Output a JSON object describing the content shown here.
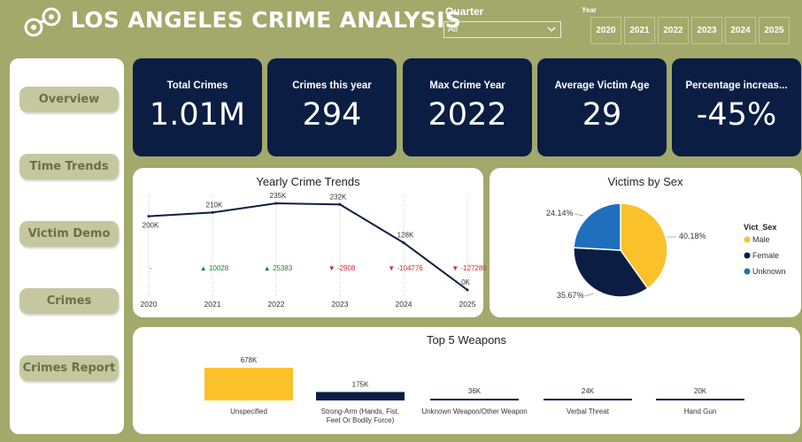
{
  "header": {
    "title": "LOS ANGELES CRIME ANALYSIS",
    "logo_icon": "handcuffs-icon"
  },
  "filters": {
    "quarter_label": "Quarter",
    "quarter_value": "All",
    "year_label": "Year",
    "years": [
      "2020",
      "2021",
      "2022",
      "2023",
      "2024",
      "2025"
    ]
  },
  "sidebar": {
    "items": [
      {
        "label": "Overview"
      },
      {
        "label": "Time Trends"
      },
      {
        "label": "Victim Demo"
      },
      {
        "label": "Crimes"
      },
      {
        "label": "Crimes Report"
      }
    ]
  },
  "kpis": [
    {
      "label": "Total Crimes",
      "value": "1.01M"
    },
    {
      "label": "Crimes this year",
      "value": "294"
    },
    {
      "label": "Max Crime Year",
      "value": "2022"
    },
    {
      "label": "Average Victim Age",
      "value": "29"
    },
    {
      "label": "Percentage increas...",
      "value": "-45%"
    }
  ],
  "colors": {
    "background": "#a3a96a",
    "navy": "#0b1d43",
    "yellow": "#fbc12a",
    "blue": "#1f6fbd",
    "up": "#1a8a34",
    "down": "#d62828"
  },
  "chart_data": [
    {
      "type": "line",
      "title": "Yearly Crime Trends",
      "x": [
        "2020",
        "2021",
        "2022",
        "2023",
        "2024",
        "2025"
      ],
      "values": [
        200000,
        210000,
        235000,
        232000,
        128000,
        0
      ],
      "data_labels": [
        "200K",
        "210K",
        "235K",
        "232K",
        "128K",
        "0K"
      ],
      "change_labels": [
        "-",
        "▲ 10028",
        "▲ 25383",
        "▼ -2908",
        "▼ -104776",
        "▼ -127280"
      ],
      "change_direction": [
        "none",
        "up",
        "up",
        "down",
        "down",
        "down"
      ],
      "grid": false
    },
    {
      "type": "pie",
      "title": "Victims by Sex",
      "legend_title": "Vict_Sex",
      "legend_position": "right",
      "slices": [
        {
          "name": "Male",
          "value": 40.18,
          "label": "40.18%",
          "color": "#fbc12a"
        },
        {
          "name": "Female",
          "value": 35.67,
          "label": "35.67%",
          "color": "#0b1d43"
        },
        {
          "name": "Unknown",
          "value": 24.14,
          "label": "24.14%",
          "color": "#1f6fbd"
        }
      ]
    },
    {
      "type": "bar",
      "title": "Top 5 Weapons",
      "categories": [
        "Unspecified",
        "Strong-Arm (Hands, Fist, Feet Or Bodily Force)",
        "Unknown Weapon/Other Weapon",
        "Verbal Threat",
        "Hand Gun"
      ],
      "values": [
        678000,
        175000,
        36000,
        24000,
        20000
      ],
      "data_labels": [
        "678K",
        "175K",
        "36K",
        "24K",
        "20K"
      ],
      "bar_colors": [
        "#fbc12a",
        "#0b1d43",
        "#0b1d43",
        "#0b1d43",
        "#0b1d43"
      ]
    }
  ]
}
